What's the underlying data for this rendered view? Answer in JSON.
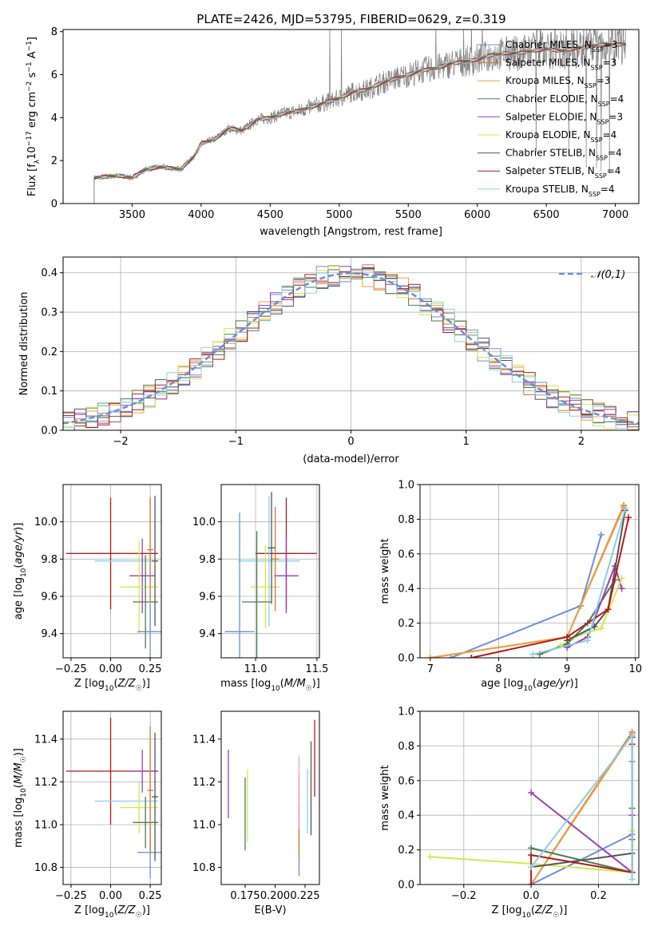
{
  "figure": {
    "title": "PLATE=2426, MJD=53795, FIBERID=0629, z=0.319"
  },
  "legend_entries": [
    {
      "pre": "Chabrier MILES, N",
      "sub": "SSP",
      "post": "=3",
      "color": "#6a8fd6"
    },
    {
      "pre": "Salpeter MILES, N",
      "sub": "SSP",
      "post": "=3",
      "color": "#d9772e"
    },
    {
      "pre": "Kroupa MILES, N",
      "sub": "SSP",
      "post": "=3",
      "color": "#f0a040"
    },
    {
      "pre": "Chabrier ELODIE, N",
      "sub": "SSP",
      "post": "=4",
      "color": "#4e7a5b"
    },
    {
      "pre": "Salpeter ELODIE, N",
      "sub": "SSP",
      "post": "=3",
      "color": "#9b3fb5"
    },
    {
      "pre": "Kroupa ELODIE, N",
      "sub": "SSP",
      "post": "=4",
      "color": "#d4e84e"
    },
    {
      "pre": "Chabrier STELIB, N",
      "sub": "SSP",
      "post": "=4",
      "color": "#555555"
    },
    {
      "pre": "Salpeter STELIB, N",
      "sub": "SSP",
      "post": "=4",
      "color": "#b01c1c"
    },
    {
      "pre": "Kroupa STELIB, N",
      "sub": "SSP",
      "post": "=4",
      "color": "#8ad0e0"
    }
  ],
  "chart_data": [
    {
      "id": "spectrum",
      "type": "line",
      "title": "PLATE=2426, MJD=53795, FIBERID=0629, z=0.319",
      "xlabel": "wavelength [Angstrom, rest frame]",
      "ylabel": "Flux [f_λ 10^-17 erg cm^-2 s^-1 A^-1]",
      "xlim": [
        3000,
        7170
      ],
      "ylim": [
        0,
        8.1
      ],
      "xticks": [
        3500,
        4000,
        4500,
        5000,
        5500,
        6000,
        6500,
        7000
      ],
      "yticks": [
        0,
        2,
        4,
        6,
        8
      ],
      "grid": false,
      "legend_loc": "upper right",
      "data_color": "#808080",
      "continuum": [
        [
          3225,
          1.2
        ],
        [
          3400,
          1.3
        ],
        [
          3500,
          1.2
        ],
        [
          3600,
          1.6
        ],
        [
          3700,
          1.7
        ],
        [
          3850,
          1.6
        ],
        [
          3950,
          2.2
        ],
        [
          4000,
          2.8
        ],
        [
          4100,
          3.0
        ],
        [
          4200,
          3.5
        ],
        [
          4300,
          3.4
        ],
        [
          4400,
          3.9
        ],
        [
          4500,
          4.0
        ],
        [
          4600,
          4.2
        ],
        [
          4700,
          4.3
        ],
        [
          4800,
          4.5
        ],
        [
          4900,
          4.7
        ],
        [
          5000,
          4.9
        ],
        [
          5100,
          5.2
        ],
        [
          5200,
          5.3
        ],
        [
          5300,
          5.6
        ],
        [
          5400,
          5.8
        ],
        [
          5500,
          6.0
        ],
        [
          5600,
          6.2
        ],
        [
          5700,
          6.3
        ],
        [
          5800,
          6.5
        ],
        [
          5900,
          6.6
        ],
        [
          6000,
          6.7
        ],
        [
          6100,
          6.9
        ],
        [
          6200,
          7.0
        ],
        [
          6300,
          7.0
        ],
        [
          6400,
          7.1
        ],
        [
          6500,
          7.2
        ],
        [
          6600,
          7.1
        ],
        [
          6700,
          7.2
        ],
        [
          6800,
          7.3
        ],
        [
          6900,
          7.4
        ],
        [
          7000,
          7.4
        ],
        [
          7080,
          7.4
        ]
      ]
    },
    {
      "id": "residuals",
      "type": "line",
      "xlabel": "(data-model)/error",
      "ylabel": "Normed distribution",
      "xlim": [
        -2.5,
        2.5
      ],
      "ylim": [
        0,
        0.44
      ],
      "xticks": [
        -2,
        -1,
        0,
        1,
        2
      ],
      "yticks": [
        0.0,
        0.1,
        0.2,
        0.3,
        0.4
      ],
      "grid": true,
      "legend_loc": "upper right",
      "legend_label": "𝒩(0,1)",
      "gaussian": {
        "mean": 0,
        "sigma": 1,
        "color": "#6a8fd6"
      },
      "bin_width": 0.1
    },
    {
      "id": "age-vs-Z",
      "type": "scatter",
      "xlabel": "Z [log₁₀(Z/Z☉)]",
      "ylabel": "age [log₁₀(age/yr)]",
      "xlim": [
        -0.3,
        0.32
      ],
      "ylim": [
        9.27,
        10.2
      ],
      "xticks": [
        -0.25,
        0.0,
        0.25
      ],
      "yticks": [
        9.4,
        9.6,
        9.8,
        10.0
      ],
      "grid": true,
      "errorbars": [
        {
          "x": 0.0,
          "xerr": [
            0.28,
            0.3
          ],
          "y": 9.83,
          "yerr": [
            0.3,
            0.3
          ],
          "color": "#b01c1c"
        },
        {
          "x": 0.25,
          "xerr": [
            0.35,
            0.05
          ],
          "y": 9.79,
          "yerr": [
            0.35,
            0.35
          ],
          "color": "#8ad0e0"
        },
        {
          "x": 0.2,
          "xerr": [
            0.08,
            0.08
          ],
          "y": 9.71,
          "yerr": [
            0.2,
            0.2
          ],
          "color": "#9b3fb5"
        },
        {
          "x": 0.18,
          "xerr": [
            0.12,
            0.12
          ],
          "y": 9.65,
          "yerr": [
            0.25,
            0.25
          ],
          "color": "#d4e84e"
        },
        {
          "x": 0.22,
          "xerr": [
            0.08,
            0.08
          ],
          "y": 9.57,
          "yerr": [
            0.25,
            0.25
          ],
          "color": "#4e7a5b"
        },
        {
          "x": 0.25,
          "xerr": [
            0.08,
            0.08
          ],
          "y": 9.41,
          "yerr": [
            0.15,
            0.15
          ],
          "color": "#6a8fd6"
        },
        {
          "x": 0.25,
          "xerr": [
            0.02,
            0.02
          ],
          "y": 9.85,
          "yerr": [
            0.28,
            0.28
          ],
          "color": "#d9772e"
        },
        {
          "x": 0.28,
          "xerr": [
            0.02,
            0.02
          ],
          "y": 9.79,
          "yerr": [
            0.35,
            0.35
          ],
          "color": "#555555"
        }
      ]
    },
    {
      "id": "age-vs-mass",
      "type": "scatter",
      "xlabel": "mass [log₁₀(M/M☉)]",
      "ylabel": "",
      "xlim": [
        10.72,
        11.52
      ],
      "ylim": [
        9.27,
        10.2
      ],
      "xticks": [
        11.0,
        11.5
      ],
      "yticks": [
        9.4,
        9.6,
        9.8,
        10.0
      ],
      "grid": true,
      "errorbars": [
        {
          "x": 11.25,
          "xerr": [
            0.25,
            0.25
          ],
          "y": 9.83,
          "yerr": [
            0.3,
            0.3
          ],
          "color": "#b01c1c"
        },
        {
          "x": 11.11,
          "xerr": [
            0.25,
            0.25
          ],
          "y": 9.79,
          "yerr": [
            0.35,
            0.35
          ],
          "color": "#8ad0e0"
        },
        {
          "x": 11.25,
          "xerr": [
            0.1,
            0.1
          ],
          "y": 9.71,
          "yerr": [
            0.2,
            0.2
          ],
          "color": "#9b3fb5"
        },
        {
          "x": 11.08,
          "xerr": [
            0.12,
            0.12
          ],
          "y": 9.65,
          "yerr": [
            0.22,
            0.22
          ],
          "color": "#d4e84e"
        },
        {
          "x": 11.01,
          "xerr": [
            0.12,
            0.12
          ],
          "y": 9.57,
          "yerr": [
            0.38,
            0.38
          ],
          "color": "#4e7a5b"
        },
        {
          "x": 10.87,
          "xerr": [
            0.12,
            0.12
          ],
          "y": 9.41,
          "yerr": [
            0.64,
            0.64
          ],
          "color": "#6a8fd6"
        },
        {
          "x": 11.16,
          "xerr": [
            0.03,
            0.03
          ],
          "y": 9.8,
          "yerr": [
            0.28,
            0.28
          ],
          "color": "#d9772e"
        },
        {
          "x": 11.13,
          "xerr": [
            0.03,
            0.03
          ],
          "y": 9.86,
          "yerr": [
            0.3,
            0.3
          ],
          "color": "#555555"
        }
      ]
    },
    {
      "id": "mass-weight-vs-age",
      "type": "line",
      "xlabel": "age [log₁₀(age/yr)]",
      "ylabel": "mass weight",
      "xlim": [
        6.85,
        10.05
      ],
      "ylim": [
        0,
        1.0
      ],
      "xticks": [
        7,
        8,
        9,
        10
      ],
      "yticks": [
        0.0,
        0.2,
        0.4,
        0.6,
        0.8,
        1.0
      ],
      "grid": true,
      "series": [
        {
          "color": "#6a8fd6",
          "x": [
            7.3,
            9.2,
            9.5
          ],
          "y": [
            0.0,
            0.3,
            0.71
          ]
        },
        {
          "color": "#d9772e",
          "x": [
            7.0,
            9.0,
            9.83
          ],
          "y": [
            0.0,
            0.12,
            0.88
          ]
        },
        {
          "color": "#f0a040",
          "x": [
            7.0,
            9.0,
            9.83
          ],
          "y": [
            0.0,
            0.12,
            0.87
          ]
        },
        {
          "color": "#4e7a5b",
          "x": [
            8.6,
            9.0,
            9.3,
            9.7
          ],
          "y": [
            0.02,
            0.08,
            0.2,
            0.45
          ]
        },
        {
          "color": "#9b3fb5",
          "x": [
            9.0,
            9.3,
            9.7,
            9.8
          ],
          "y": [
            0.06,
            0.12,
            0.53,
            0.4
          ]
        },
        {
          "color": "#d4e84e",
          "x": [
            8.9,
            9.1,
            9.5,
            9.8
          ],
          "y": [
            0.07,
            0.12,
            0.17,
            0.46
          ]
        },
        {
          "color": "#555555",
          "x": [
            9.0,
            9.4,
            9.6,
            9.85
          ],
          "y": [
            0.1,
            0.18,
            0.28,
            0.85
          ]
        },
        {
          "color": "#b01c1c",
          "x": [
            7.6,
            9.0,
            9.6,
            9.9
          ],
          "y": [
            0.0,
            0.12,
            0.28,
            0.81
          ]
        },
        {
          "color": "#8ad0e0",
          "x": [
            8.5,
            9.3,
            9.85
          ],
          "y": [
            0.02,
            0.1,
            0.86
          ]
        }
      ]
    },
    {
      "id": "mass-vs-Z",
      "type": "scatter",
      "xlabel": "Z [log₁₀(Z/Z☉)]",
      "ylabel": "mass [log₁₀(M/M☉)]",
      "xlim": [
        -0.3,
        0.32
      ],
      "ylim": [
        10.72,
        11.53
      ],
      "xticks": [
        -0.25,
        0.0,
        0.25
      ],
      "yticks": [
        10.8,
        11.0,
        11.2,
        11.4
      ],
      "grid": true,
      "errorbars": [
        {
          "x": 0.0,
          "xerr": [
            0.28,
            0.3
          ],
          "y": 11.25,
          "yerr": [
            0.25,
            0.25
          ],
          "color": "#b01c1c"
        },
        {
          "x": 0.25,
          "xerr": [
            0.35,
            0.05
          ],
          "y": 11.11,
          "yerr": [
            0.25,
            0.25
          ],
          "color": "#8ad0e0"
        },
        {
          "x": 0.2,
          "xerr": [
            0.08,
            0.08
          ],
          "y": 11.25,
          "yerr": [
            0.1,
            0.1
          ],
          "color": "#9b3fb5"
        },
        {
          "x": 0.18,
          "xerr": [
            0.12,
            0.12
          ],
          "y": 11.08,
          "yerr": [
            0.12,
            0.12
          ],
          "color": "#d4e84e"
        },
        {
          "x": 0.22,
          "xerr": [
            0.08,
            0.08
          ],
          "y": 11.01,
          "yerr": [
            0.12,
            0.12
          ],
          "color": "#4e7a5b"
        },
        {
          "x": 0.25,
          "xerr": [
            0.08,
            0.08
          ],
          "y": 10.87,
          "yerr": [
            0.12,
            0.12
          ],
          "color": "#6a8fd6"
        },
        {
          "x": 0.25,
          "xerr": [
            0.02,
            0.02
          ],
          "y": 11.16,
          "yerr": [
            0.3,
            0.3
          ],
          "color": "#d9772e"
        },
        {
          "x": 0.28,
          "xerr": [
            0.02,
            0.02
          ],
          "y": 11.13,
          "yerr": [
            0.3,
            0.3
          ],
          "color": "#555555"
        }
      ]
    },
    {
      "id": "mass-vs-ebv",
      "type": "scatter",
      "xlabel": "E(B-V)",
      "ylabel": "",
      "xlim": [
        0.155,
        0.237
      ],
      "ylim": [
        10.72,
        11.53
      ],
      "xticks": [
        0.175,
        0.2,
        0.225
      ],
      "xticklabels": [
        "0.175",
        "0.200",
        "0.225"
      ],
      "yticks": [
        10.8,
        11.0,
        11.2,
        11.4
      ],
      "grid": false,
      "errorbars": [
        {
          "x": 0.161,
          "y": 11.19,
          "yerr": [
            0.16,
            0.16
          ],
          "color": "#9b3fb5"
        },
        {
          "x": 0.175,
          "y": 11.05,
          "yerr": [
            0.17,
            0.17
          ],
          "color": "#4e7a5b"
        },
        {
          "x": 0.177,
          "y": 11.09,
          "yerr": [
            0.17,
            0.17
          ],
          "color": "#d4e84e"
        },
        {
          "x": 0.22,
          "y": 10.93,
          "yerr": [
            0.17,
            0.17
          ],
          "color": "#6a8fd6"
        },
        {
          "x": 0.22,
          "y": 11.04,
          "yerr": [
            0.2,
            0.2
          ],
          "color": "#d9772e"
        },
        {
          "x": 0.22,
          "y": 11.15,
          "yerr": [
            0.17,
            0.17
          ],
          "color": "#f4a0c0"
        },
        {
          "x": 0.227,
          "y": 11.11,
          "yerr": [
            0.15,
            0.15
          ],
          "color": "#8ad0e0"
        },
        {
          "x": 0.23,
          "y": 11.17,
          "yerr": [
            0.22,
            0.22
          ],
          "color": "#555555"
        },
        {
          "x": 0.233,
          "y": 11.31,
          "yerr": [
            0.18,
            0.18
          ],
          "color": "#b01c1c"
        }
      ]
    },
    {
      "id": "mass-weight-vs-Z",
      "type": "line",
      "xlabel": "Z [log₁₀(Z/Z☉)]",
      "ylabel": "mass weight",
      "xlim": [
        -0.33,
        0.32
      ],
      "ylim": [
        0,
        1.0
      ],
      "xticks": [
        -0.2,
        0.0,
        0.2
      ],
      "yticks": [
        0.0,
        0.2,
        0.4,
        0.6,
        0.8,
        1.0
      ],
      "grid": true,
      "series": [
        {
          "color": "#6a8fd6",
          "x": [
            0.0,
            0.3,
            0.3
          ],
          "y": [
            0.0,
            0.29,
            0.71
          ]
        },
        {
          "color": "#d9772e",
          "x": [
            0.0,
            0.3
          ],
          "y": [
            0.0,
            0.88
          ]
        },
        {
          "color": "#f0a040",
          "x": [
            0.0,
            0.3
          ],
          "y": [
            0.0,
            0.87
          ]
        },
        {
          "color": "#4e7a5b",
          "x": [
            0.0,
            0.3,
            0.3,
            0.3
          ],
          "y": [
            0.21,
            0.07,
            0.26,
            0.44
          ]
        },
        {
          "color": "#9b3fb5",
          "x": [
            0.0,
            0.3,
            0.3
          ],
          "y": [
            0.53,
            0.07,
            0.4
          ]
        },
        {
          "color": "#d4e84e",
          "x": [
            -0.3,
            0.0,
            0.3,
            0.3
          ],
          "y": [
            0.16,
            0.12,
            0.07,
            0.31
          ]
        },
        {
          "color": "#555555",
          "x": [
            0.0,
            0.3,
            0.3,
            0.3
          ],
          "y": [
            0.1,
            0.18,
            0.07,
            0.85
          ]
        },
        {
          "color": "#b01c1c",
          "x": [
            0.0,
            0.0,
            0.3,
            0.3
          ],
          "y": [
            0.0,
            0.17,
            0.07,
            0.81
          ]
        },
        {
          "color": "#8ad0e0",
          "x": [
            0.0,
            0.3,
            0.3
          ],
          "y": [
            0.1,
            0.86,
            0.03
          ]
        }
      ]
    }
  ]
}
